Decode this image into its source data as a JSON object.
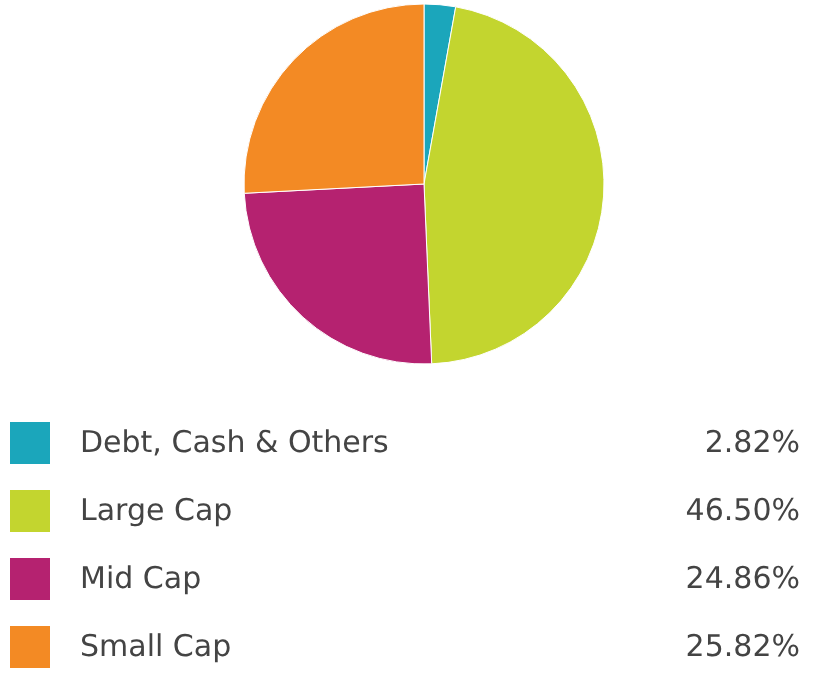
{
  "chart_data": {
    "type": "pie",
    "categories": [
      "Debt, Cash & Others",
      "Large Cap",
      "Mid Cap",
      "Small Cap"
    ],
    "values": [
      2.82,
      46.5,
      24.86,
      25.82
    ],
    "value_labels": [
      "2.82%",
      "46.50%",
      "24.86%",
      "25.82%"
    ],
    "colors": [
      "#1ba6bb",
      "#c3d52f",
      "#b52270",
      "#f38a24"
    ],
    "legend": "bottom"
  }
}
